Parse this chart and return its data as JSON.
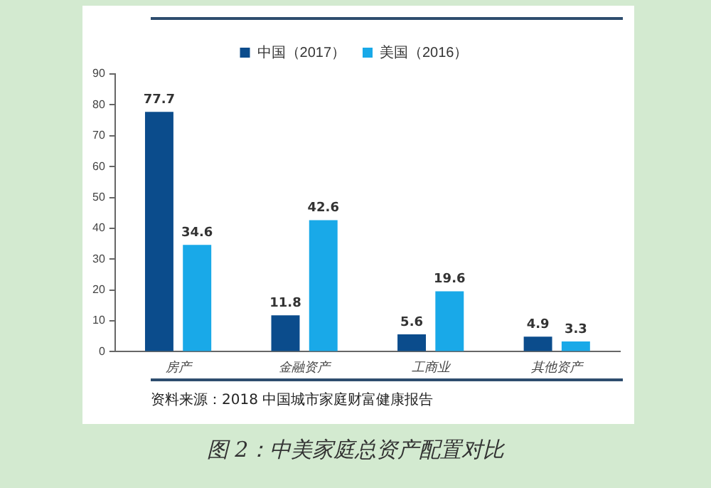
{
  "chart_data": {
    "type": "bar",
    "title": "图 2：中美家庭总资产配置对比",
    "categories": [
      "房产",
      "金融资产",
      "工商业",
      "其他资产"
    ],
    "series": [
      {
        "name": "中国（2017）",
        "color": "#0b4c8c",
        "values": [
          77.7,
          11.8,
          5.6,
          4.9
        ]
      },
      {
        "name": "美国（2016）",
        "color": "#19a9e8",
        "values": [
          34.6,
          42.6,
          19.6,
          3.3
        ]
      }
    ],
    "ylim": [
      0,
      90
    ],
    "yticks": [
      0,
      10,
      20,
      30,
      40,
      50,
      60,
      70,
      80,
      90
    ],
    "grid": false,
    "legend": "top",
    "data_labels": true,
    "annotations": [
      "资料来源：2018 中国城市家庭财富健康报告"
    ]
  }
}
